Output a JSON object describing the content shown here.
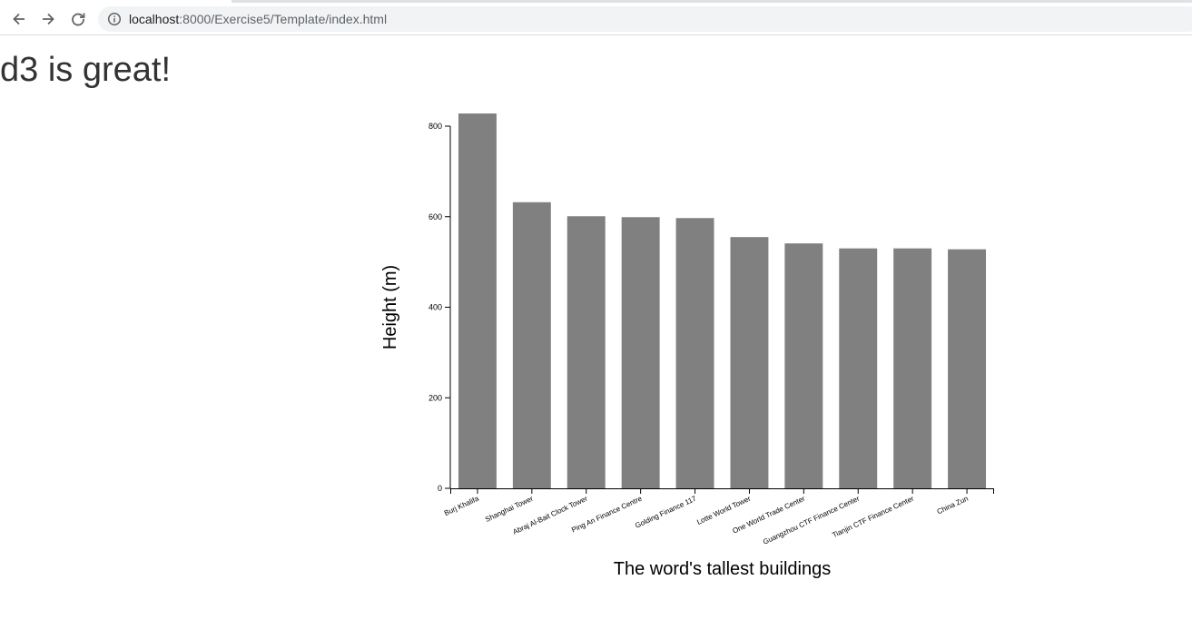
{
  "browser": {
    "url_host": "localhost",
    "url_rest": ":8000/Exercise5/Template/index.html",
    "icons": {
      "back": "arrow-left-icon",
      "forward": "arrow-right-icon",
      "reload": "reload-icon",
      "site_info": "info-icon"
    }
  },
  "page": {
    "title": "d3 is great!"
  },
  "chart_data": {
    "type": "bar",
    "categories": [
      "Burj Khalifa",
      "Shanghai Tower",
      "Abraj Al-Bait Clock Tower",
      "Ping An Finance Centre",
      "Golding Finance 117",
      "Lotte World Tower",
      "One World Trade Center",
      "Guangzhou CTF Finance Center",
      "Tianjin CTF Finance Center",
      "China Zun"
    ],
    "values": [
      828,
      632,
      601,
      599,
      597,
      555,
      541,
      530,
      530,
      528
    ],
    "ylim": [
      0,
      800
    ],
    "yticks": [
      "0",
      "200",
      "400",
      "600",
      "800"
    ],
    "xlabel": "The word's tallest buildings",
    "ylabel": "Height (m)",
    "bar_color": "#808080",
    "grid": false
  }
}
